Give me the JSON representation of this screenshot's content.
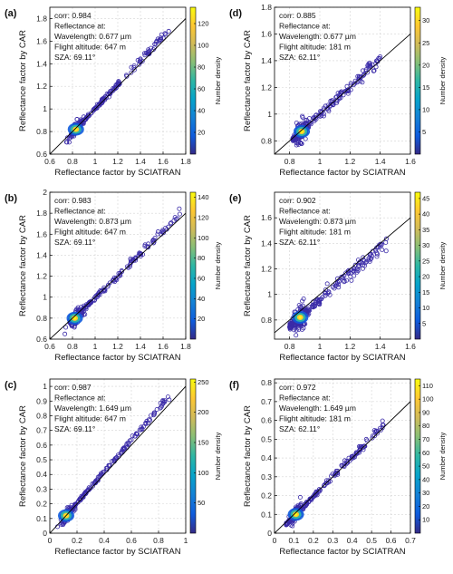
{
  "chart_data": [
    {
      "type": "scatter",
      "panel_label": "(a)",
      "xlabel": "Reflectance factor by SCIATRAN",
      "ylabel": "Reflectance factor by CAR",
      "xlim": [
        0.6,
        1.8
      ],
      "ylim": [
        0.6,
        1.9
      ],
      "xticks": [
        "0.6",
        "0.8",
        "1",
        "1.2",
        "1.4",
        "1.6",
        "1.8"
      ],
      "yticks": [
        "0.6",
        "0.8",
        "1",
        "1.2",
        "1.4",
        "1.6",
        "1.8"
      ],
      "annotation": [
        "corr: 0.984",
        "Reflectance at:",
        "Wavelength: 0.677 µm",
        "Flight altitude: 647 m",
        "SZA: 69.11°"
      ],
      "colorbar": {
        "label": "Number density",
        "min": 0,
        "max": 135,
        "ticks": [
          "20",
          "40",
          "60",
          "80",
          "100",
          "120"
        ]
      },
      "cluster": {
        "x": 0.83,
        "y": 0.82
      },
      "trend": {
        "x0": 0.79,
        "x1": 1.65,
        "slope": 1.07,
        "sx": 0.18,
        "sy": 0.04
      },
      "n_points": 260
    },
    {
      "type": "scatter",
      "panel_label": "(b)",
      "xlabel": "Reflectance factor by SCIATRAN",
      "ylabel": "Reflectance factor by CAR",
      "xlim": [
        0.6,
        1.8
      ],
      "ylim": [
        0.6,
        2.0
      ],
      "xticks": [
        "0.6",
        "0.8",
        "1",
        "1.2",
        "1.4",
        "1.6",
        "1.8"
      ],
      "yticks": [
        "0.6",
        "0.8",
        "1",
        "1.2",
        "1.4",
        "1.6",
        "1.8",
        "2"
      ],
      "annotation": [
        "corr: 0.983",
        "Reflectance at:",
        "Wavelength: 0.873 µm",
        "Flight altitude: 647 m",
        "SZA: 69.11°"
      ],
      "colorbar": {
        "label": "Number density",
        "min": 0,
        "max": 145,
        "ticks": [
          "20",
          "40",
          "60",
          "80",
          "100",
          "120",
          "140"
        ]
      },
      "cluster": {
        "x": 0.82,
        "y": 0.8
      },
      "trend": {
        "x0": 0.78,
        "x1": 1.75,
        "slope": 1.06,
        "sx": 0.2,
        "sy": 0.045
      },
      "n_points": 270
    },
    {
      "type": "scatter",
      "panel_label": "(c)",
      "xlabel": "Reflectance factor by SCIATRAN",
      "ylabel": "Reflectance factor by CAR",
      "xlim": [
        0,
        1
      ],
      "ylim": [
        0,
        1.05
      ],
      "xticks": [
        "0",
        "0.2",
        "0.4",
        "0.6",
        "0.8",
        "1"
      ],
      "yticks": [
        "0",
        "0.1",
        "0.2",
        "0.3",
        "0.4",
        "0.5",
        "0.6",
        "0.7",
        "0.8",
        "0.9",
        "1"
      ],
      "annotation": [
        "corr: 0.987",
        "Reflectance at:",
        "Wavelength: 1.649 µm",
        "Flight altitude: 647 m",
        "SZA: 69.11°"
      ],
      "colorbar": {
        "label": "Number density",
        "min": 0,
        "max": 255,
        "ticks": [
          "50",
          "100",
          "150",
          "200",
          "250"
        ]
      },
      "cluster": {
        "x": 0.12,
        "y": 0.12
      },
      "trend": {
        "x0": 0.1,
        "x1": 0.88,
        "slope": 1.07,
        "sx": 0.18,
        "sy": 0.03
      },
      "n_points": 280
    },
    {
      "type": "scatter",
      "panel_label": "(d)",
      "xlabel": "Reflectance factor by SCIATRAN",
      "ylabel": "Reflectance factor by CAR",
      "xlim": [
        0.7,
        1.6
      ],
      "ylim": [
        0.7,
        1.8
      ],
      "xticks": [
        "0.8",
        "1",
        "1.2",
        "1.4",
        "1.6"
      ],
      "yticks": [
        "0.8",
        "1",
        "1.2",
        "1.4",
        "1.6",
        "1.8"
      ],
      "annotation": [
        "corr: 0.885",
        "Reflectance at:",
        "Wavelength: 0.677 µm",
        "Flight altitude: 181 m",
        "SZA: 62.11°"
      ],
      "colorbar": {
        "label": "Number density",
        "min": 0,
        "max": 33,
        "ticks": [
          "5",
          "10",
          "15",
          "20",
          "25",
          "30"
        ]
      },
      "cluster": {
        "x": 0.88,
        "y": 0.87
      },
      "trend": {
        "x0": 0.82,
        "x1": 1.4,
        "slope": 1.05,
        "sx": 0.12,
        "sy": 0.09
      },
      "n_points": 280
    },
    {
      "type": "scatter",
      "panel_label": "(e)",
      "xlabel": "Reflectance factor by SCIATRAN",
      "ylabel": "Reflectance factor by CAR",
      "xlim": [
        0.7,
        1.6
      ],
      "ylim": [
        0.65,
        1.8
      ],
      "xticks": [
        "0.8",
        "1",
        "1.2",
        "1.4",
        "1.6"
      ],
      "yticks": [
        "0.8",
        "1",
        "1.2",
        "1.4",
        "1.6"
      ],
      "annotation": [
        "corr: 0.902",
        "Reflectance at:",
        "Wavelength: 0.873 µm",
        "Flight altitude: 181 m",
        "SZA: 62.11°"
      ],
      "colorbar": {
        "label": "Number density",
        "min": 0,
        "max": 47,
        "ticks": [
          "5",
          "10",
          "15",
          "20",
          "25",
          "30",
          "35",
          "40",
          "45"
        ]
      },
      "cluster": {
        "x": 0.87,
        "y": 0.82
      },
      "trend": {
        "x0": 0.8,
        "x1": 1.45,
        "slope": 1.03,
        "sx": 0.14,
        "sy": 0.09
      },
      "n_points": 300
    },
    {
      "type": "scatter",
      "panel_label": "(f)",
      "xlabel": "Reflectance factor by SCIATRAN",
      "ylabel": "Reflectance factor by CAR",
      "xlim": [
        0,
        0.7
      ],
      "ylim": [
        0,
        0.82
      ],
      "xticks": [
        "0",
        "0.1",
        "0.2",
        "0.3",
        "0.4",
        "0.5",
        "0.6",
        "0.7"
      ],
      "yticks": [
        "0",
        "0.1",
        "0.2",
        "0.3",
        "0.4",
        "0.5",
        "0.6",
        "0.7",
        "0.8"
      ],
      "annotation": [
        "corr: 0.972",
        "Reflectance at:",
        "Wavelength: 1.649 µm",
        "Flight altitude: 181 m",
        "SZA: 62.11°"
      ],
      "colorbar": {
        "label": "Number density",
        "min": 0,
        "max": 115,
        "ticks": [
          "10",
          "20",
          "30",
          "40",
          "50",
          "60",
          "70",
          "80",
          "90",
          "100",
          "110"
        ]
      },
      "cluster": {
        "x": 0.11,
        "y": 0.1
      },
      "trend": {
        "x0": 0.06,
        "x1": 0.58,
        "slope": 1.05,
        "sx": 0.14,
        "sy": 0.04
      },
      "n_points": 280
    }
  ],
  "colors": {
    "marker": "#3a2ba8",
    "one_to_one_line": "#000000",
    "colormap": [
      "#352a87",
      "#0f5cdd",
      "#1481d6",
      "#06a4ca",
      "#2eb7a4",
      "#87bf77",
      "#d1bb59",
      "#fec832",
      "#f9fb0e"
    ]
  }
}
